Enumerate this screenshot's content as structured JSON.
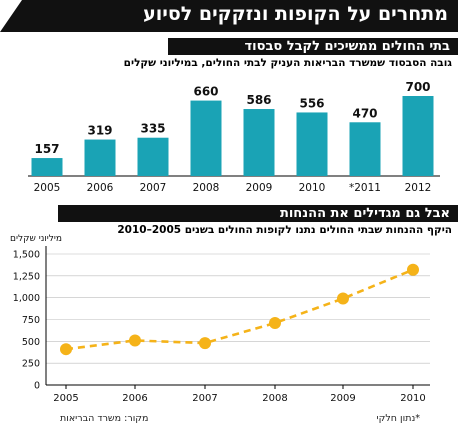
{
  "title": "מתחרים על הקופות ונזקקים לסיוע",
  "bar_section": {
    "heading": "בתי החולים ממשיכים לקבל סבסוד",
    "subtitle": "גובה הסבסוד שמשרד הבריאות העניק לבתי החולים, במיליוני שקלים"
  },
  "line_section": {
    "heading": "אבל גם מגדילים את ההנחות",
    "subtitle": "היקף ההנחות שבתי החולים נתנו לקופות החולים בשנים 2005–2010"
  },
  "source": "מקור: משרד הבריאות",
  "note": "*נתון חלקי",
  "colors": {
    "bar": "#1aa3b5",
    "line": "#f5b319",
    "marker": "#f5b319",
    "banner": "#111111"
  },
  "chart_data": [
    {
      "type": "bar",
      "categories": [
        "2005",
        "2006",
        "2007",
        "2008",
        "2009",
        "2010",
        "*2011",
        "2012"
      ],
      "values": [
        157,
        319,
        335,
        660,
        586,
        556,
        470,
        700
      ],
      "value_labels": [
        "157",
        "319",
        "335",
        "660",
        "586",
        "556",
        "470",
        "700"
      ],
      "ylim": [
        0,
        700
      ]
    },
    {
      "type": "line",
      "x": [
        "2005",
        "2006",
        "2007",
        "2008",
        "2009",
        "2010"
      ],
      "values": [
        410,
        510,
        480,
        710,
        990,
        1320
      ],
      "ylabel": "מיליוני שקלים",
      "ylim": [
        0,
        1500
      ],
      "yticks": [
        0,
        250,
        500,
        750,
        1000,
        1250,
        1500
      ],
      "ytick_labels": [
        "0",
        "250",
        "500",
        "750",
        "1,000",
        "1,250",
        "1,500"
      ],
      "line_style": "dashed",
      "grid": true
    }
  ]
}
